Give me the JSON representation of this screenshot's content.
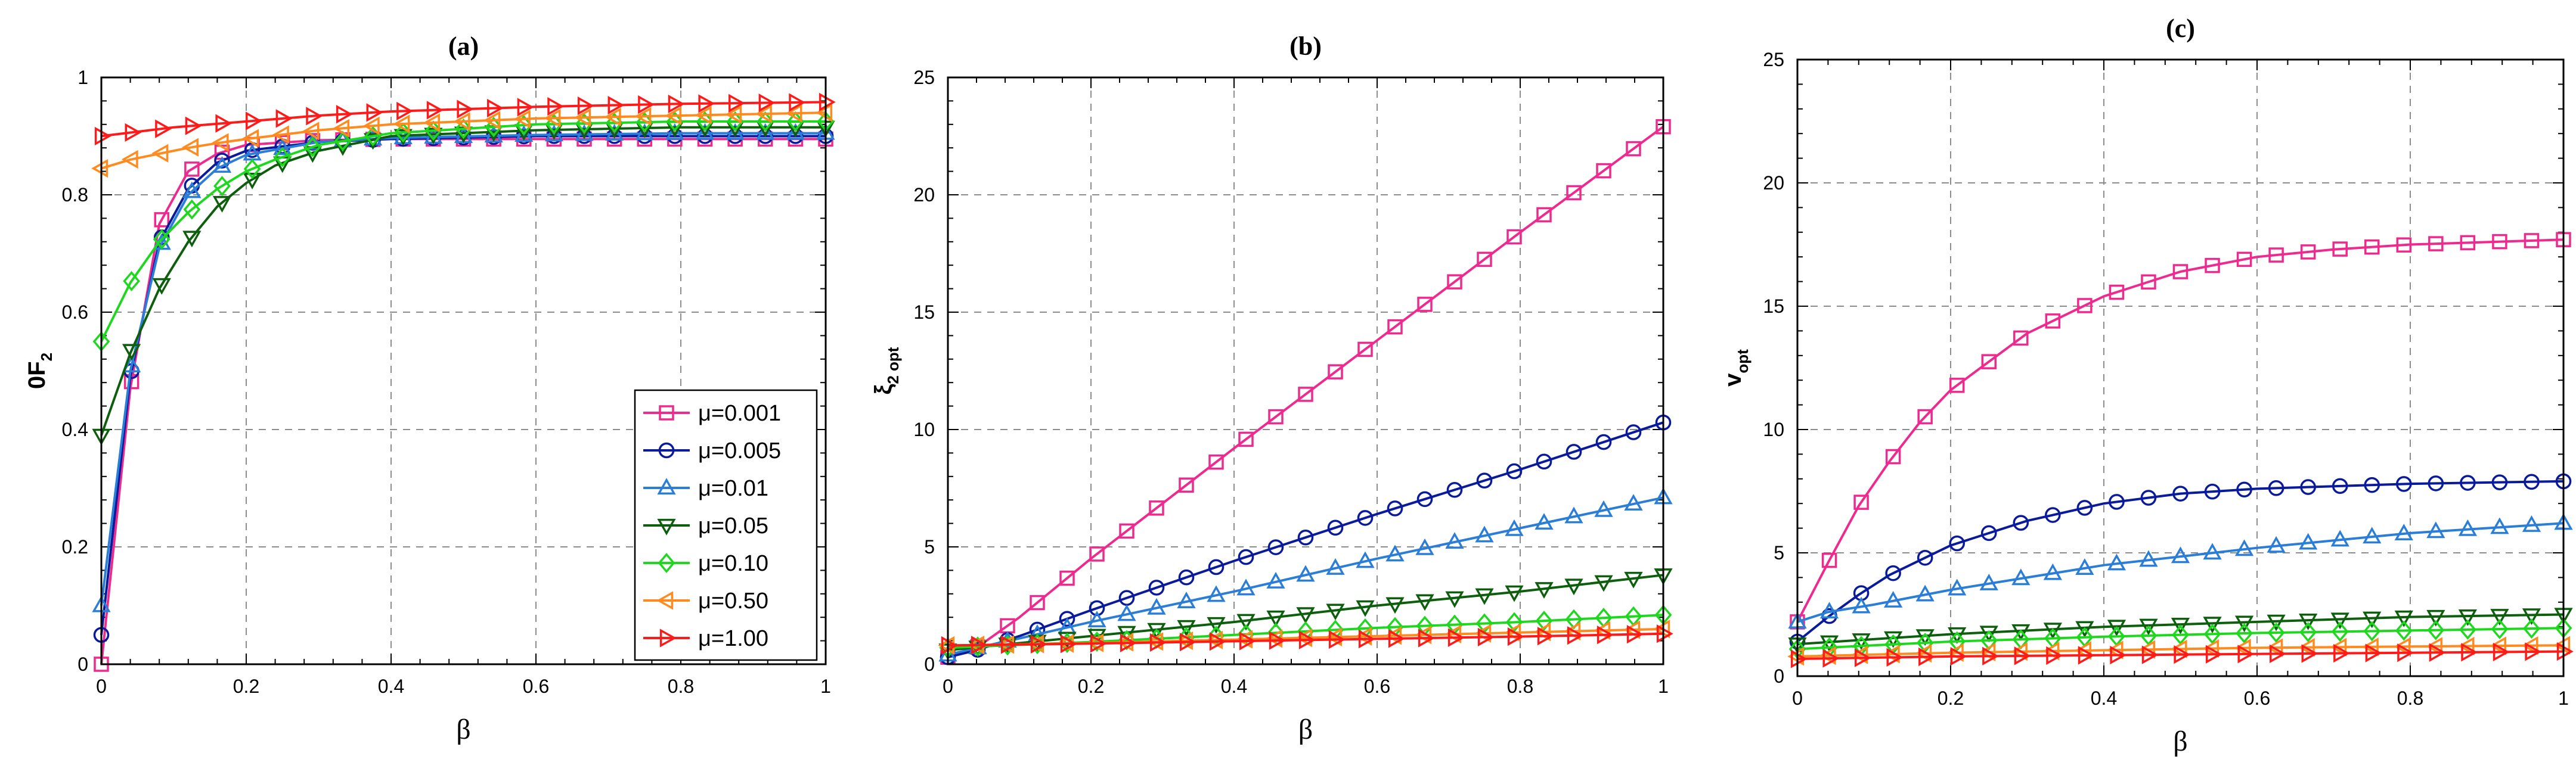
{
  "legend": [
    {
      "label": "μ=0.001",
      "color": "#ee2a8f",
      "marker": "square"
    },
    {
      "label": "μ=0.005",
      "color": "#0a1a9c",
      "marker": "circle"
    },
    {
      "label": "μ=0.01",
      "color": "#2a7ed8",
      "marker": "triangle-up"
    },
    {
      "label": "μ=0.05",
      "color": "#0d5f0d",
      "marker": "triangle-down"
    },
    {
      "label": "μ=0.10",
      "color": "#1ed81e",
      "marker": "diamond"
    },
    {
      "label": "μ=0.50",
      "color": "#ff8a1e",
      "marker": "triangle-left"
    },
    {
      "label": "μ=1.00",
      "color": "#ff1a1a",
      "marker": "triangle-right"
    }
  ],
  "chart_data": [
    {
      "type": "line",
      "title": "(a)",
      "xlabel": "β",
      "ylabel_main": "0F",
      "ylabel_sub": "2",
      "xlim": [
        0,
        1
      ],
      "ylim": [
        0,
        1
      ],
      "xticks": [
        0,
        0.2,
        0.4,
        0.6,
        0.8,
        1
      ],
      "xtick_labels": [
        "0",
        "0.2",
        "0.4",
        "0.6",
        "0.8",
        "1"
      ],
      "yticks": [
        0,
        0.2,
        0.4,
        0.6,
        0.8,
        1
      ],
      "ytick_labels": [
        "0",
        "0.2",
        "0.4",
        "0.6",
        "0.8",
        "1"
      ],
      "grid": true,
      "legend_position": "bottom-right",
      "series": [
        {
          "name": "μ=0.001",
          "x": [
            0,
            0.04,
            0.08,
            0.12,
            0.16,
            0.2,
            0.3,
            0.4,
            0.6,
            0.8,
            1.0
          ],
          "y": [
            0.0,
            0.47,
            0.75,
            0.84,
            0.87,
            0.885,
            0.893,
            0.895,
            0.895,
            0.895,
            0.895
          ]
        },
        {
          "name": "μ=0.005",
          "x": [
            0,
            0.04,
            0.08,
            0.12,
            0.16,
            0.2,
            0.3,
            0.4,
            0.6,
            0.8,
            1.0
          ],
          "y": [
            0.05,
            0.49,
            0.72,
            0.81,
            0.855,
            0.875,
            0.89,
            0.895,
            0.9,
            0.9,
            0.9
          ]
        },
        {
          "name": "μ=0.01",
          "x": [
            0,
            0.04,
            0.08,
            0.12,
            0.16,
            0.2,
            0.3,
            0.4,
            0.6,
            0.8,
            1.0
          ],
          "y": [
            0.1,
            0.5,
            0.71,
            0.8,
            0.845,
            0.868,
            0.89,
            0.897,
            0.902,
            0.905,
            0.905
          ]
        },
        {
          "name": "μ=0.05",
          "x": [
            0,
            0.04,
            0.08,
            0.12,
            0.16,
            0.2,
            0.24,
            0.3,
            0.4,
            0.6,
            0.8,
            1.0
          ],
          "y": [
            0.39,
            0.53,
            0.64,
            0.72,
            0.78,
            0.82,
            0.85,
            0.875,
            0.9,
            0.91,
            0.915,
            0.915
          ]
        },
        {
          "name": "μ=0.10",
          "x": [
            0,
            0.04,
            0.08,
            0.12,
            0.16,
            0.2,
            0.24,
            0.3,
            0.4,
            0.6,
            0.8,
            1.0
          ],
          "y": [
            0.55,
            0.65,
            0.72,
            0.77,
            0.81,
            0.84,
            0.86,
            0.885,
            0.905,
            0.92,
            0.925,
            0.925
          ]
        },
        {
          "name": "μ=0.50",
          "x": [
            0,
            0.04,
            0.08,
            0.12,
            0.16,
            0.2,
            0.3,
            0.4,
            0.6,
            0.8,
            1.0
          ],
          "y": [
            0.845,
            0.86,
            0.87,
            0.88,
            0.888,
            0.895,
            0.91,
            0.92,
            0.93,
            0.935,
            0.94
          ]
        },
        {
          "name": "μ=1.00",
          "x": [
            0,
            0.1,
            0.2,
            0.3,
            0.4,
            0.6,
            0.8,
            1.0
          ],
          "y": [
            0.9,
            0.915,
            0.925,
            0.935,
            0.942,
            0.95,
            0.955,
            0.958
          ]
        }
      ]
    },
    {
      "type": "line",
      "title": "(b)",
      "xlabel": "β",
      "ylabel_main": "ξ",
      "ylabel_sub": "2 opt",
      "xlim": [
        0,
        1
      ],
      "ylim": [
        0,
        25
      ],
      "xticks": [
        0,
        0.2,
        0.4,
        0.6,
        0.8,
        1
      ],
      "xtick_labels": [
        "0",
        "0.2",
        "0.4",
        "0.6",
        "0.8",
        "1"
      ],
      "yticks": [
        0,
        5,
        10,
        15,
        20,
        25
      ],
      "ytick_labels": [
        "0",
        "5",
        "10",
        "15",
        "20",
        "25"
      ],
      "grid": true,
      "series": [
        {
          "name": "μ=0.001",
          "x": [
            0,
            0.04,
            0.1,
            0.2,
            0.4,
            0.6,
            0.8,
            1.0
          ],
          "y": [
            0.3,
            0.7,
            2.0,
            4.5,
            9.2,
            13.8,
            18.4,
            22.9
          ]
        },
        {
          "name": "μ=0.005",
          "x": [
            0,
            0.04,
            0.1,
            0.2,
            0.4,
            0.6,
            0.8,
            1.0
          ],
          "y": [
            0.3,
            0.6,
            1.2,
            2.3,
            4.4,
            6.4,
            8.3,
            10.3
          ]
        },
        {
          "name": "μ=0.01",
          "x": [
            0,
            0.04,
            0.1,
            0.2,
            0.4,
            0.6,
            0.8,
            1.0
          ],
          "y": [
            0.4,
            0.7,
            1.1,
            1.8,
            3.1,
            4.5,
            5.8,
            7.1
          ]
        },
        {
          "name": "μ=0.05",
          "x": [
            0,
            0.1,
            0.2,
            0.4,
            0.6,
            0.8,
            1.0
          ],
          "y": [
            0.6,
            0.9,
            1.2,
            1.8,
            2.5,
            3.1,
            3.8
          ]
        },
        {
          "name": "μ=0.10",
          "x": [
            0,
            0.2,
            0.4,
            0.6,
            0.8,
            1.0
          ],
          "y": [
            0.7,
            0.95,
            1.25,
            1.55,
            1.8,
            2.1
          ]
        },
        {
          "name": "μ=0.50",
          "x": [
            0,
            0.2,
            0.4,
            0.6,
            0.8,
            1.0
          ],
          "y": [
            0.8,
            0.9,
            1.05,
            1.2,
            1.35,
            1.5
          ]
        },
        {
          "name": "μ=1.00",
          "x": [
            0,
            0.2,
            0.4,
            0.6,
            0.8,
            1.0
          ],
          "y": [
            0.8,
            0.88,
            0.98,
            1.08,
            1.18,
            1.3
          ]
        }
      ]
    },
    {
      "type": "line",
      "title": "(c)",
      "xlabel": "β",
      "ylabel_main": "v",
      "ylabel_sub": "opt",
      "xlim": [
        0,
        1
      ],
      "ylim": [
        0,
        25
      ],
      "xticks": [
        0,
        0.2,
        0.4,
        0.6,
        0.8,
        1
      ],
      "xtick_labels": [
        "0",
        "0.2",
        "0.4",
        "0.6",
        "0.8",
        "1"
      ],
      "yticks": [
        0,
        5,
        10,
        15,
        20,
        25
      ],
      "ytick_labels": [
        "0",
        "5",
        "10",
        "15",
        "20",
        "25"
      ],
      "grid": true,
      "series": [
        {
          "name": "μ=0.001",
          "x": [
            0,
            0.04,
            0.08,
            0.12,
            0.16,
            0.2,
            0.3,
            0.4,
            0.5,
            0.6,
            0.7,
            0.8,
            0.9,
            1.0
          ],
          "y": [
            2.2,
            4.6,
            6.9,
            8.7,
            10.3,
            11.6,
            13.9,
            15.4,
            16.4,
            17.0,
            17.3,
            17.5,
            17.6,
            17.7
          ]
        },
        {
          "name": "μ=0.005",
          "x": [
            0,
            0.04,
            0.08,
            0.12,
            0.2,
            0.3,
            0.4,
            0.5,
            0.6,
            0.8,
            1.0
          ],
          "y": [
            1.4,
            2.4,
            3.3,
            4.1,
            5.3,
            6.3,
            7.0,
            7.4,
            7.6,
            7.8,
            7.9
          ]
        },
        {
          "name": "μ=0.01",
          "x": [
            0,
            0.04,
            0.1,
            0.2,
            0.3,
            0.4,
            0.6,
            0.8,
            1.0
          ],
          "y": [
            2.2,
            2.6,
            2.9,
            3.5,
            4.0,
            4.5,
            5.2,
            5.8,
            6.2
          ]
        },
        {
          "name": "μ=0.05",
          "x": [
            0,
            0.2,
            0.4,
            0.6,
            0.8,
            1.0
          ],
          "y": [
            1.3,
            1.7,
            2.0,
            2.2,
            2.4,
            2.5
          ]
        },
        {
          "name": "μ=0.10",
          "x": [
            0,
            0.2,
            0.4,
            0.6,
            0.8,
            1.0
          ],
          "y": [
            1.1,
            1.4,
            1.6,
            1.75,
            1.85,
            1.95
          ]
        },
        {
          "name": "μ=0.50",
          "x": [
            0,
            0.2,
            0.4,
            0.6,
            0.8,
            1.0
          ],
          "y": [
            0.8,
            0.95,
            1.05,
            1.15,
            1.2,
            1.25
          ]
        },
        {
          "name": "μ=1.00",
          "x": [
            0,
            0.2,
            0.4,
            0.6,
            0.8,
            1.0
          ],
          "y": [
            0.7,
            0.8,
            0.85,
            0.9,
            0.95,
            1.0
          ]
        }
      ]
    }
  ]
}
